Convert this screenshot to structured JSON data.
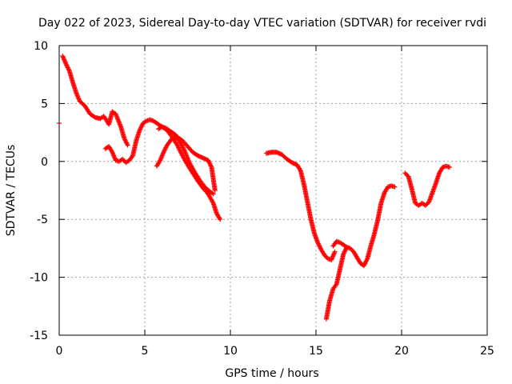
{
  "chart_data": {
    "type": "scatter",
    "title": "Day 022 of 2023, Sidereal Day-to-day VTEC variation (SDTVAR) for receiver rvdi",
    "xlabel": "GPS time / hours",
    "ylabel": "SDTVAR / TECUs",
    "xlim": [
      0,
      25
    ],
    "ylim": [
      -15,
      10
    ],
    "xticks": [
      0,
      5,
      10,
      15,
      20,
      25
    ],
    "yticks": [
      -15,
      -10,
      -5,
      0,
      5,
      10
    ],
    "grid": true,
    "marker": "+",
    "color": "#ff0000",
    "series": [
      {
        "name": "seg1",
        "x": [
          0.2,
          0.4,
          0.6,
          0.8,
          1.0,
          1.2,
          1.5,
          1.8,
          2.1,
          2.4,
          2.6,
          2.7,
          2.9,
          3.1,
          3.3,
          3.6,
          3.8,
          4.0
        ],
        "y": [
          9.1,
          8.4,
          7.8,
          6.8,
          5.9,
          5.2,
          4.8,
          4.1,
          3.8,
          3.7,
          3.9,
          3.7,
          3.2,
          4.3,
          4.1,
          3.0,
          2.0,
          1.4
        ]
      },
      {
        "name": "seg2",
        "x": [
          2.7,
          2.9,
          3.1,
          3.3,
          3.5,
          3.7,
          3.9,
          4.1,
          4.3,
          4.5,
          4.7,
          4.9,
          5.1,
          5.3,
          5.5,
          5.7,
          6.0,
          6.3,
          6.6,
          6.9,
          7.2,
          7.5,
          7.8,
          8.1,
          8.4,
          8.7,
          9.0,
          9.2,
          9.4
        ],
        "y": [
          1.1,
          1.3,
          0.8,
          0.1,
          0.0,
          0.2,
          -0.1,
          0.1,
          0.5,
          1.8,
          2.7,
          3.3,
          3.5,
          3.6,
          3.5,
          3.3,
          3.0,
          2.7,
          2.1,
          1.4,
          0.5,
          -0.3,
          -1.0,
          -1.7,
          -2.3,
          -2.8,
          -3.6,
          -4.5,
          -5.0
        ]
      },
      {
        "name": "seg3",
        "x": [
          5.7,
          5.9,
          6.1,
          6.3,
          6.6,
          6.9,
          7.2,
          7.5,
          7.8,
          8.1,
          8.4,
          8.7,
          8.9,
          9.0,
          9.1
        ],
        "y": [
          -0.4,
          0.1,
          0.8,
          1.4,
          2.0,
          2.1,
          1.8,
          1.3,
          0.8,
          0.5,
          0.3,
          0.1,
          -0.5,
          -1.5,
          -2.5
        ]
      },
      {
        "name": "seg4",
        "x": [
          5.8,
          6.0,
          6.2,
          6.5,
          6.8,
          7.0,
          7.3,
          7.6,
          7.9,
          8.2,
          8.5,
          8.8,
          9.0
        ],
        "y": [
          2.8,
          3.0,
          2.9,
          2.6,
          2.3,
          1.8,
          1.0,
          -0.1,
          -0.9,
          -1.6,
          -2.2,
          -2.6,
          -2.8
        ]
      },
      {
        "name": "seg5",
        "x": [
          12.1,
          12.4,
          12.7,
          13.0,
          13.3,
          13.6,
          13.9,
          14.1,
          14.3,
          14.5,
          14.7,
          14.9,
          15.1,
          15.3,
          15.5,
          15.7,
          15.9,
          16.1
        ],
        "y": [
          0.7,
          0.8,
          0.8,
          0.6,
          0.2,
          -0.1,
          -0.3,
          -0.8,
          -2.0,
          -3.5,
          -5.0,
          -6.2,
          -7.0,
          -7.6,
          -8.1,
          -8.4,
          -8.5,
          -7.8
        ]
      },
      {
        "name": "seg6",
        "x": [
          15.6,
          15.7,
          15.8,
          15.9,
          16.0,
          16.2,
          16.4,
          16.6,
          16.8,
          17.0,
          17.2,
          17.4,
          17.6,
          17.8,
          18.0,
          18.2,
          18.4,
          18.6,
          18.8,
          19.0,
          19.2,
          19.4,
          19.6
        ],
        "y": [
          -13.6,
          -12.8,
          -12.0,
          -11.5,
          -11.0,
          -10.6,
          -9.3,
          -8.0,
          -7.4,
          -7.5,
          -7.8,
          -8.3,
          -8.8,
          -9.0,
          -8.4,
          -7.3,
          -6.3,
          -5.1,
          -3.6,
          -2.7,
          -2.2,
          -2.1,
          -2.2
        ]
      },
      {
        "name": "seg7",
        "x": [
          16.0,
          16.2,
          16.4,
          16.6,
          16.8
        ],
        "y": [
          -7.3,
          -6.9,
          -7.0,
          -7.2,
          -7.4
        ]
      },
      {
        "name": "seg8",
        "x": [
          20.2,
          20.4,
          20.6,
          20.8,
          21.0,
          21.2,
          21.4,
          21.6,
          21.8,
          22.0,
          22.2,
          22.4,
          22.6,
          22.8
        ],
        "y": [
          -1.0,
          -1.3,
          -2.4,
          -3.6,
          -3.8,
          -3.6,
          -3.8,
          -3.5,
          -2.7,
          -1.9,
          -1.0,
          -0.5,
          -0.4,
          -0.5
        ]
      }
    ],
    "outliers": [
      {
        "x": 0.0,
        "y": 3.3
      }
    ]
  }
}
